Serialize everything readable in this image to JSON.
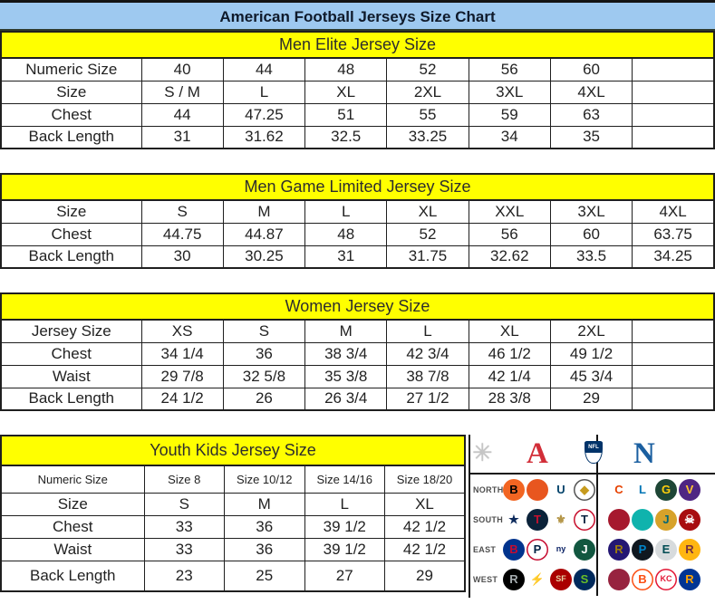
{
  "title": "American Football Jerseys Size Chart",
  "palette": {
    "title_bg": "#9ec9f0",
    "section_bg": "#ffff00",
    "border": "#1f1f1f",
    "afc_red": "#d22e38",
    "nfc_blue": "#1b5fa0",
    "nfl_shield_blue": "#013369"
  },
  "tables": [
    {
      "id": "men-elite",
      "header": "Men Elite Jersey Size",
      "rows": [
        {
          "label": "Numeric Size",
          "cells": [
            "40",
            "44",
            "48",
            "52",
            "56",
            "60",
            ""
          ]
        },
        {
          "label": "Size",
          "cells": [
            "S / M",
            "L",
            "XL",
            "2XL",
            "3XL",
            "4XL",
            ""
          ]
        },
        {
          "label": "Chest",
          "cells": [
            "44",
            "47.25",
            "51",
            "55",
            "59",
            "63",
            ""
          ]
        },
        {
          "label": "Back Length",
          "cells": [
            "31",
            "31.62",
            "32.5",
            "33.25",
            "34",
            "35",
            ""
          ]
        }
      ]
    },
    {
      "id": "men-game-limited",
      "header": "Men Game Limited Jersey Size",
      "rows": [
        {
          "label": "Size",
          "cells": [
            "S",
            "M",
            "L",
            "XL",
            "XXL",
            "3XL",
            "4XL"
          ]
        },
        {
          "label": "Chest",
          "cells": [
            "44.75",
            "44.87",
            "48",
            "52",
            "56",
            "60",
            "63.75"
          ]
        },
        {
          "label": "Back Length",
          "cells": [
            "30",
            "30.25",
            "31",
            "31.75",
            "32.62",
            "33.5",
            "34.25"
          ]
        }
      ]
    },
    {
      "id": "women",
      "header": "Women Jersey Size",
      "rows": [
        {
          "label": "Jersey Size",
          "cells": [
            "XS",
            "S",
            "M",
            "L",
            "XL",
            "2XL",
            ""
          ]
        },
        {
          "label": "Chest",
          "cells": [
            "34 1/4",
            "36",
            "38 3/4",
            "42 3/4",
            "46 1/2",
            "49 1/2",
            ""
          ]
        },
        {
          "label": "Waist",
          "cells": [
            "29 7/8",
            "32 5/8",
            "35 3/8",
            "38 7/8",
            "42 1/4",
            "45 3/4",
            ""
          ]
        },
        {
          "label": "Back Length",
          "cells": [
            "24 1/2",
            "26",
            "26 3/4",
            "27 1/2",
            "28 3/8",
            "29",
            ""
          ]
        }
      ]
    },
    {
      "id": "youth-kids",
      "header": "Youth Kids Jersey Size",
      "rows": [
        {
          "label": "Numeric Size",
          "cells": [
            "Size 8",
            "Size 10/12",
            "Size 14/16",
            "Size 18/20"
          ]
        },
        {
          "label": "Size",
          "cells": [
            "S",
            "M",
            "L",
            "XL"
          ]
        },
        {
          "label": "Chest",
          "cells": [
            "33",
            "36",
            "39 1/2",
            "42 1/2"
          ]
        },
        {
          "label": "Waist",
          "cells": [
            "33",
            "36",
            "39 1/2",
            "42 1/2"
          ]
        },
        {
          "label": "Back Length",
          "cells": [
            "23",
            "25",
            "27",
            "29"
          ]
        }
      ]
    }
  ],
  "logo_panel": {
    "starburst_glyph": "✳",
    "afc_letter": "A",
    "nfl_text": "NFL",
    "nfc_letter": "N",
    "divisions": [
      {
        "label": "NORTH",
        "afc": [
          {
            "name": "bengals",
            "bg": "#f26522",
            "fg": "#000000",
            "letter": "B"
          },
          {
            "name": "browns",
            "bg": "#e8561f",
            "fg": "#ffffff",
            "letter": ""
          },
          {
            "name": "colts",
            "bg": "#ffffff",
            "fg": "#01426a",
            "letter": "U"
          },
          {
            "name": "steelers",
            "bg": "#ffffff",
            "fg": "#c79b1e",
            "letter": "◆",
            "ring": "#555555"
          }
        ],
        "nfc": [
          {
            "name": "bears",
            "bg": "#ffffff",
            "fg": "#e64100",
            "letter": "C"
          },
          {
            "name": "lions",
            "bg": "#ffffff",
            "fg": "#0076b6",
            "letter": "L"
          },
          {
            "name": "packers",
            "bg": "#1e4636",
            "fg": "#ffce0c",
            "letter": "G"
          },
          {
            "name": "vikings",
            "bg": "#4f2683",
            "fg": "#ffc62f",
            "letter": "V"
          }
        ]
      },
      {
        "label": "SOUTH",
        "afc": [
          {
            "name": "cowboys",
            "bg": "#ffffff",
            "fg": "#0d2a5c",
            "letter": "★"
          },
          {
            "name": "texans",
            "bg": "#0b2239",
            "fg": "#c8102e",
            "letter": "T"
          },
          {
            "name": "saints",
            "bg": "#ffffff",
            "fg": "#b49546",
            "letter": "⚜"
          },
          {
            "name": "titans",
            "bg": "#ffffff",
            "fg": "#0c2340",
            "letter": "T",
            "ring": "#c8102e"
          }
        ],
        "nfc": [
          {
            "name": "falcons",
            "bg": "#a6192e",
            "fg": "#000000",
            "letter": ""
          },
          {
            "name": "dolphins",
            "bg": "#0fb3ad",
            "fg": "#ffffff",
            "letter": ""
          },
          {
            "name": "jaguars",
            "bg": "#d7a22a",
            "fg": "#006778",
            "letter": "J"
          },
          {
            "name": "buccaneers",
            "bg": "#a80d10",
            "fg": "#ffffff",
            "letter": "☠"
          }
        ]
      },
      {
        "label": "EAST",
        "afc": [
          {
            "name": "bills",
            "bg": "#00338d",
            "fg": "#c60c30",
            "letter": "B"
          },
          {
            "name": "patriots",
            "bg": "#ffffff",
            "fg": "#002244",
            "letter": "P",
            "ring": "#c60c30"
          },
          {
            "name": "giants",
            "bg": "#ffffff",
            "fg": "#0b2265",
            "letter": "ny",
            "small": true
          },
          {
            "name": "jets",
            "bg": "#125740",
            "fg": "#ffffff",
            "letter": "J"
          }
        ],
        "nfc": [
          {
            "name": "ravens",
            "bg": "#241773",
            "fg": "#9e7c0c",
            "letter": "R"
          },
          {
            "name": "panthers",
            "bg": "#101820",
            "fg": "#0085ca",
            "letter": "P"
          },
          {
            "name": "eagles",
            "bg": "#d7dbdd",
            "fg": "#004c54",
            "letter": "E"
          },
          {
            "name": "redskins",
            "bg": "#ffb612",
            "fg": "#773141",
            "letter": "R"
          }
        ]
      },
      {
        "label": "WEST",
        "afc": [
          {
            "name": "raiders",
            "bg": "#000000",
            "fg": "#a5acaf",
            "letter": "R"
          },
          {
            "name": "chargers",
            "bg": "#ffffff",
            "fg": "#f2a900",
            "letter": "⚡"
          },
          {
            "name": "fortyniners",
            "bg": "#aa0000",
            "fg": "#e6d2a4",
            "letter": "SF",
            "small": true
          },
          {
            "name": "seahawks",
            "bg": "#002a5c",
            "fg": "#69be28",
            "letter": "S"
          }
        ],
        "nfc": [
          {
            "name": "cardinals",
            "bg": "#97233f",
            "fg": "#ffffff",
            "letter": ""
          },
          {
            "name": "broncos",
            "bg": "#ffffff",
            "fg": "#fb4f14",
            "letter": "B",
            "ring": "#fb4f14"
          },
          {
            "name": "chiefs",
            "bg": "#ffffff",
            "fg": "#e31837",
            "letter": "KC",
            "small": true,
            "ring": "#e31837"
          },
          {
            "name": "rams",
            "bg": "#003594",
            "fg": "#ffa300",
            "letter": "R"
          }
        ]
      }
    ]
  }
}
